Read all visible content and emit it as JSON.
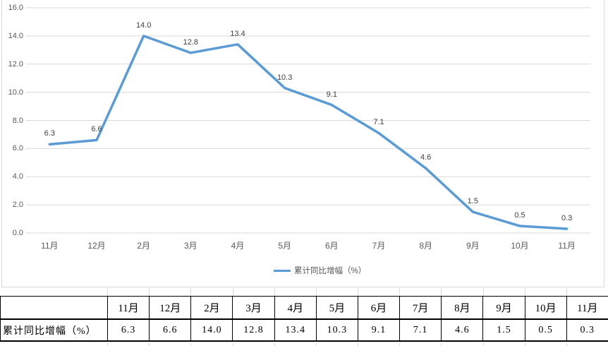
{
  "chart": {
    "legend_label": "累计同比增幅（%）",
    "colors": {
      "line": "#5B9BD5",
      "gridline": "#D9D9D9",
      "axis_text": "#595959",
      "data_label_text": "#404040"
    }
  },
  "chart_data": {
    "type": "line",
    "title": "",
    "xlabel": "",
    "ylabel": "",
    "categories": [
      "11月",
      "12月",
      "2月",
      "3月",
      "4月",
      "5月",
      "6月",
      "7月",
      "8月",
      "9月",
      "10月",
      "11月"
    ],
    "series": [
      {
        "name": "累计同比增幅（%）",
        "values": [
          6.3,
          6.6,
          14.0,
          12.8,
          13.4,
          10.3,
          9.1,
          7.1,
          4.6,
          1.5,
          0.5,
          0.3
        ]
      }
    ],
    "data_labels": [
      "6.3",
      "6.6",
      "14.0",
      "12.8",
      "13.4",
      "10.3",
      "9.1",
      "7.1",
      "4.6",
      "1.5",
      "0.5",
      "0.3"
    ],
    "ylim": [
      0,
      16
    ],
    "y_tick_interval": 2,
    "y_tick_labels": [
      "0.0",
      "2.0",
      "4.0",
      "6.0",
      "8.0",
      "10.0",
      "12.0",
      "14.0",
      "16.0"
    ],
    "grid": true,
    "legend_position": "bottom"
  },
  "table": {
    "row_header": "累计同比增幅（%）",
    "columns": [
      "11月",
      "12月",
      "2月",
      "3月",
      "4月",
      "5月",
      "6月",
      "7月",
      "8月",
      "9月",
      "10月",
      "11月"
    ],
    "values": [
      "6.3",
      "6.6",
      "14.0",
      "12.8",
      "13.4",
      "10.3",
      "9.1",
      "7.1",
      "4.6",
      "1.5",
      "0.5",
      "0.3"
    ]
  }
}
